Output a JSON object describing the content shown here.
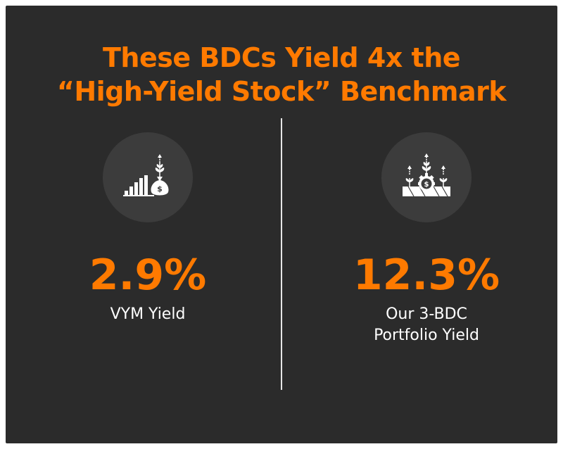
{
  "title": {
    "line1": "These BDCs Yield 4x the",
    "line2": "“High-Yield Stock” Benchmark"
  },
  "colors": {
    "background": "#2b2b2b",
    "accent": "#ff7a00",
    "text": "#ffffff",
    "icon_circle": "#3c3c3c"
  },
  "left": {
    "icon": "growth-bars-money-bag-icon",
    "value": "2.9%",
    "label": "VYM Yield"
  },
  "right": {
    "icon": "gear-dollar-plants-icon",
    "value": "12.3%",
    "label": "Our 3-BDC\nPortfolio Yield"
  }
}
